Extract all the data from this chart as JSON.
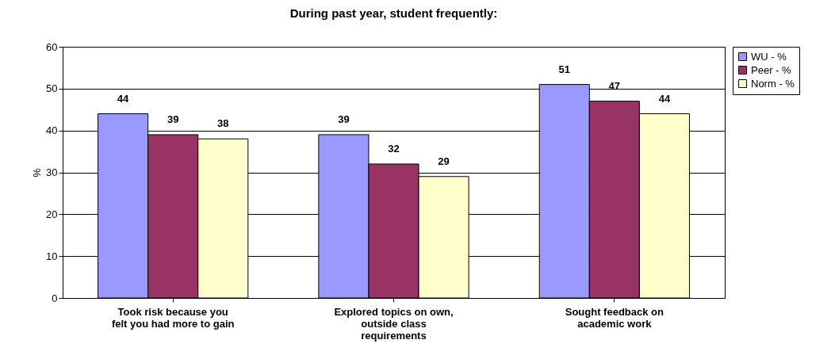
{
  "chart_data": {
    "type": "bar",
    "title": "During past year, student frequently:",
    "ylabel": "%",
    "categories": [
      "Took risk because you felt you had more to gain",
      "Explored topics on own, outside class requirements",
      "Sought feedback on academic work"
    ],
    "series": [
      {
        "name": "WU - %",
        "color": "#9999ff",
        "values": [
          44,
          39,
          51
        ]
      },
      {
        "name": "Peer - %",
        "color": "#993366",
        "values": [
          39,
          32,
          47
        ]
      },
      {
        "name": "Norm - %",
        "color": "#ffffcc",
        "values": [
          38,
          29,
          44
        ]
      }
    ],
    "ylim": [
      0,
      60
    ],
    "yticks": [
      0,
      10,
      20,
      30,
      40,
      50,
      60
    ],
    "grid": "y",
    "legend": "right",
    "data_labels": true
  }
}
